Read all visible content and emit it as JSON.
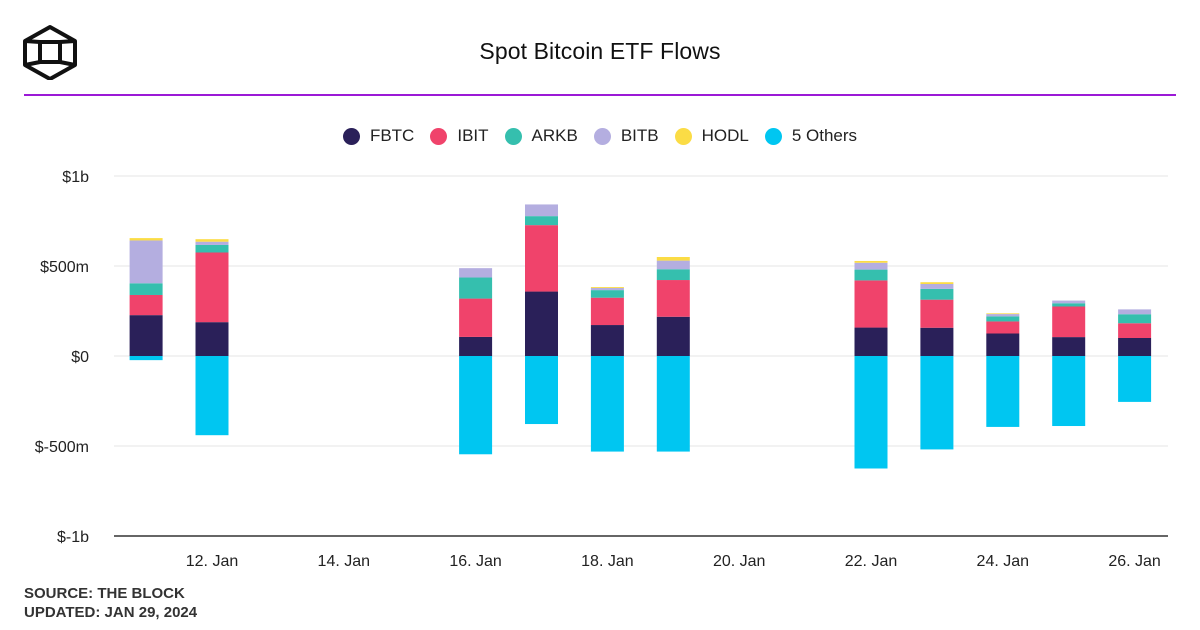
{
  "header": {
    "title": "Spot Bitcoin ETF Flows",
    "logo_icon": "the-block-cube-icon"
  },
  "footer": {
    "source": "SOURCE: THE BLOCK",
    "updated": "UPDATED: JAN 29, 2024"
  },
  "chart_data": {
    "type": "bar",
    "stacked": true,
    "title": "Spot Bitcoin ETF Flows",
    "xlabel": "",
    "ylabel": "",
    "ylim": [
      -1000,
      1000
    ],
    "y_unit": "USD millions",
    "y_ticks": [
      {
        "value": 1000,
        "label": "$1b"
      },
      {
        "value": 500,
        "label": "$500m"
      },
      {
        "value": 0,
        "label": "$0"
      },
      {
        "value": -500,
        "label": "$-500m"
      },
      {
        "value": -1000,
        "label": "$-1b"
      }
    ],
    "x_ticks": [
      {
        "date": "2024-01-12",
        "label": "12. Jan"
      },
      {
        "date": "2024-01-14",
        "label": "14. Jan"
      },
      {
        "date": "2024-01-16",
        "label": "16. Jan"
      },
      {
        "date": "2024-01-18",
        "label": "18. Jan"
      },
      {
        "date": "2024-01-20",
        "label": "20. Jan"
      },
      {
        "date": "2024-01-22",
        "label": "22. Jan"
      },
      {
        "date": "2024-01-24",
        "label": "24. Jan"
      },
      {
        "date": "2024-01-26",
        "label": "26. Jan"
      }
    ],
    "grid": true,
    "legend": "top-center",
    "categories": [
      "2024-01-11",
      "2024-01-12",
      "2024-01-16",
      "2024-01-17",
      "2024-01-18",
      "2024-01-19",
      "2024-01-22",
      "2024-01-23",
      "2024-01-24",
      "2024-01-25",
      "2024-01-26"
    ],
    "series": [
      {
        "name": "FBTC",
        "color": "#2a2059",
        "values": [
          227,
          188,
          106,
          358,
          172,
          218,
          158,
          157,
          125,
          105,
          100
        ]
      },
      {
        "name": "IBIT",
        "color": "#f0436b",
        "values": [
          112,
          387,
          213,
          369,
          152,
          204,
          262,
          156,
          67,
          170,
          82
        ]
      },
      {
        "name": "ARKB",
        "color": "#35bfae",
        "values": [
          65,
          42,
          117,
          50,
          42,
          60,
          60,
          60,
          28,
          18,
          50
        ]
      },
      {
        "name": "BITB",
        "color": "#b4aee0",
        "values": [
          238,
          18,
          52,
          65,
          12,
          48,
          38,
          27,
          13,
          15,
          27
        ]
      },
      {
        "name": "HODL",
        "color": "#fbdc45",
        "values": [
          13,
          14,
          0,
          0,
          5,
          20,
          10,
          10,
          4,
          0,
          0
        ]
      },
      {
        "name": "5 Others",
        "color": "#00c6f1",
        "values": [
          -23,
          -440,
          -546,
          -378,
          -531,
          -531,
          -625,
          -519,
          -394,
          -389,
          -255
        ]
      }
    ]
  }
}
